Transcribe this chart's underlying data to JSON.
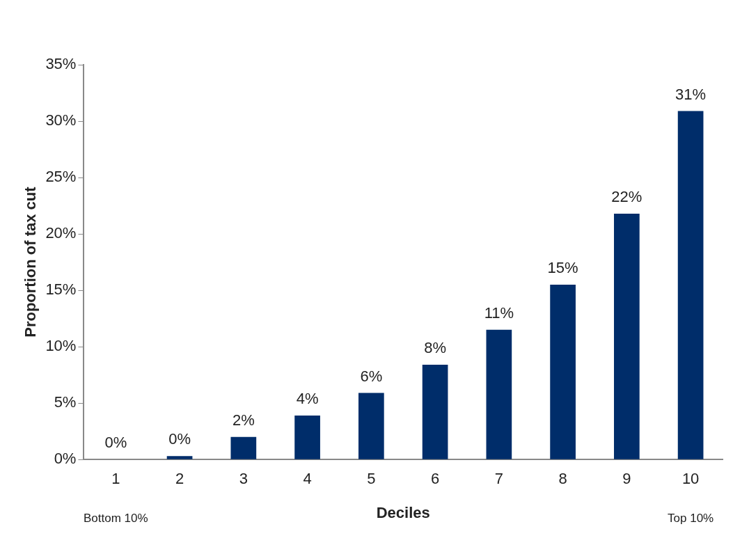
{
  "chart_data": {
    "type": "bar",
    "xlabel": "Deciles",
    "ylabel": "Proportion of tax cut",
    "categories": [
      "1",
      "2",
      "3",
      "4",
      "5",
      "6",
      "7",
      "8",
      "9",
      "10"
    ],
    "values": [
      0,
      0.3,
      2.0,
      3.9,
      5.9,
      8.4,
      11.5,
      15.5,
      21.8,
      30.9
    ],
    "value_labels": [
      "0%",
      "0%",
      "2%",
      "4%",
      "6%",
      "8%",
      "11%",
      "15%",
      "22%",
      "31%"
    ],
    "color": "#002d6a",
    "ylim": [
      0,
      35
    ],
    "yticks": [
      {
        "value": 0,
        "label": "0%"
      },
      {
        "value": 5,
        "label": "5%"
      },
      {
        "value": 10,
        "label": "10%"
      },
      {
        "value": 15,
        "label": "15%"
      },
      {
        "value": 20,
        "label": "20%"
      },
      {
        "value": 25,
        "label": "25%"
      },
      {
        "value": 30,
        "label": "30%"
      },
      {
        "value": 35,
        "label": "35%"
      }
    ],
    "annotations": [
      "Bottom 10%",
      "Top 10%"
    ],
    "grid": false,
    "legend": false
  }
}
